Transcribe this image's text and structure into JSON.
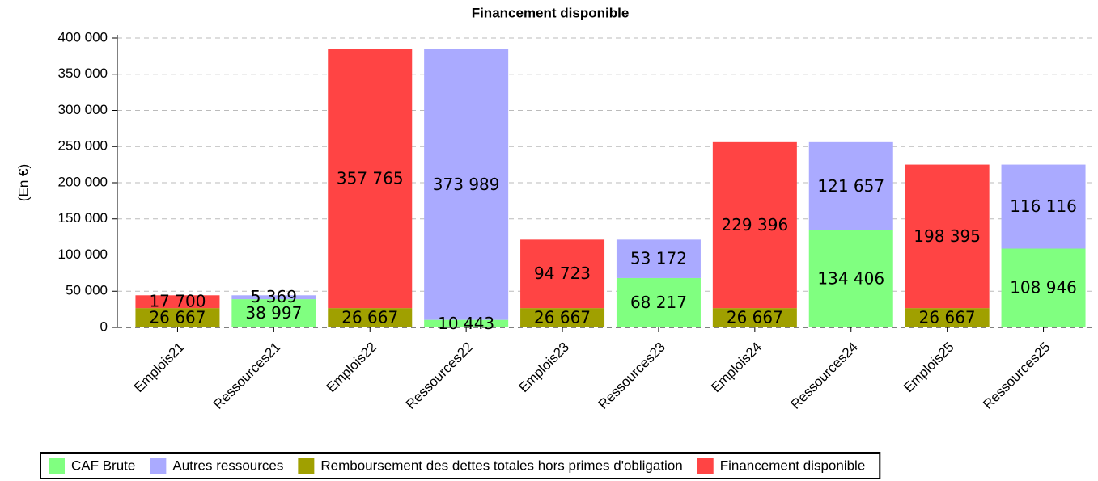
{
  "chart_data": {
    "type": "bar",
    "stacked": true,
    "title": "Financement disponible",
    "y_label": "(En €)",
    "categories": [
      "Emplois21",
      "Ressources21",
      "Emplois22",
      "Ressources22",
      "Emplois23",
      "Ressources23",
      "Emplois24",
      "Ressources24",
      "Emplois25",
      "Ressources25"
    ],
    "series": [
      {
        "name": "CAF Brute",
        "color": "#80ff80",
        "values": [
          null,
          38997,
          null,
          10443,
          null,
          68217,
          null,
          134406,
          null,
          108946
        ],
        "value_labels": [
          null,
          "38 997",
          null,
          "10 443",
          null,
          "68 217",
          null,
          "134 406",
          null,
          "108 946"
        ]
      },
      {
        "name": "Autres ressources",
        "color": "#aaaaff",
        "values": [
          null,
          5369,
          null,
          373989,
          null,
          53172,
          null,
          121657,
          null,
          116116
        ],
        "value_labels": [
          null,
          "5 369",
          null,
          "373 989",
          null,
          "53 172",
          null,
          "121 657",
          null,
          "116 116"
        ]
      },
      {
        "name": "Remboursement des dettes totales hors primes d'obligation",
        "color": "#a0a000",
        "values": [
          26667,
          null,
          26667,
          null,
          26667,
          null,
          26667,
          null,
          26667,
          null
        ],
        "value_labels": [
          "26 667",
          null,
          "26 667",
          null,
          "26 667",
          null,
          "26 667",
          null,
          "26 667",
          null
        ]
      },
      {
        "name": "Financement disponible",
        "color": "#ff4444",
        "values": [
          17700,
          null,
          357765,
          null,
          94723,
          null,
          229396,
          null,
          198395,
          null
        ],
        "value_labels": [
          "17 700",
          null,
          "357 765",
          null,
          "94 723",
          null,
          "229 396",
          null,
          "198 395",
          null
        ]
      }
    ],
    "ylim": [
      0,
      400000
    ],
    "yticks": [
      0,
      {
        "value": 50000,
        "label": "50 000"
      },
      {
        "value": 100000,
        "label": "100 000"
      },
      {
        "value": 150000,
        "label": "150 000"
      },
      {
        "value": 200000,
        "label": "200 000"
      },
      {
        "value": 250000,
        "label": "250 000"
      },
      {
        "value": 300000,
        "label": "300 000"
      },
      {
        "value": 350000,
        "label": "350 000"
      },
      {
        "value": 400000,
        "label": "400 000"
      }
    ],
    "grid": true,
    "legend": "bottom"
  }
}
